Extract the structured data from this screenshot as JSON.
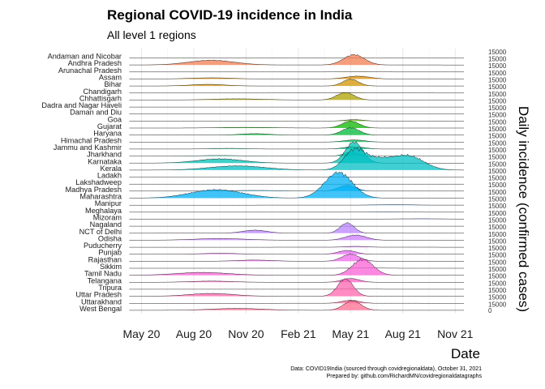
{
  "chart_data": {
    "type": "area",
    "subtype": "ridgeline",
    "title": "Regional COVID-19 incidence in India",
    "subtitle": "All level 1 regions",
    "xlabel": "Date",
    "ylabel": "Daily incidence (confirmed cases)",
    "x_range": [
      0,
      19.5
    ],
    "x_unit": "months since 2020-04-01",
    "x_ticks": [
      {
        "label": "May 20",
        "value": 1
      },
      {
        "label": "Aug 20",
        "value": 4
      },
      {
        "label": "Nov 20",
        "value": 7
      },
      {
        "label": "Feb 21",
        "value": 10
      },
      {
        "label": "May 21",
        "value": 13
      },
      {
        "label": "Aug 21",
        "value": 16
      },
      {
        "label": "Nov 21",
        "value": 19
      }
    ],
    "y_ticks_per_panel": [
      "0",
      "15000"
    ],
    "panel_max": 15000,
    "caption": [
      "Data: COVID19India (sourced through covidregionaldata), October 31, 2021",
      "Prepared by: github.com/RichardMN/covidregionaldatagraphs"
    ],
    "series": [
      {
        "name": "Andaman and Nicobar",
        "color": "#f8766d",
        "peaks": []
      },
      {
        "name": "Andhra Pradesh",
        "color": "#f27d52",
        "peaks": [
          [
            5,
            10000,
            1.3
          ],
          [
            13.2,
            22000,
            0.6
          ]
        ]
      },
      {
        "name": "Arunachal Pradesh",
        "color": "#ea8331",
        "peaks": [
          [
            13.5,
            500,
            1.0
          ]
        ]
      },
      {
        "name": "Assam",
        "color": "#de8c00",
        "peaks": [
          [
            5,
            2500,
            1.2
          ],
          [
            13.4,
            6000,
            0.7
          ]
        ]
      },
      {
        "name": "Bihar",
        "color": "#d09400",
        "peaks": [
          [
            4.8,
            3500,
            1.0
          ],
          [
            13,
            14500,
            0.45
          ]
        ]
      },
      {
        "name": "Chandigarh",
        "color": "#c09b00",
        "peaks": [
          [
            13,
            900,
            0.6
          ]
        ]
      },
      {
        "name": "Chhattisgarh",
        "color": "#aea200",
        "peaks": [
          [
            6.5,
            2500,
            1.5
          ],
          [
            12.7,
            16000,
            0.5
          ]
        ]
      },
      {
        "name": "Dadra and Nagar Haveli",
        "color": "#99a800",
        "peaks": []
      },
      {
        "name": "Daman and Diu",
        "color": "#7cae00",
        "peaks": []
      },
      {
        "name": "Goa",
        "color": "#53b400",
        "peaks": [
          [
            13.2,
            3000,
            0.5
          ]
        ]
      },
      {
        "name": "Gujarat",
        "color": "#0cb702",
        "peaks": [
          [
            7,
            1500,
            1.5
          ],
          [
            13,
            14500,
            0.5
          ]
        ]
      },
      {
        "name": "Haryana",
        "color": "#00ba38",
        "peaks": [
          [
            7.5,
            3000,
            0.8
          ],
          [
            13,
            15500,
            0.5
          ]
        ]
      },
      {
        "name": "Himachal Pradesh",
        "color": "#00bd5c",
        "peaks": [
          [
            13.2,
            4500,
            0.6
          ]
        ]
      },
      {
        "name": "Jammu and Kashmir",
        "color": "#00bf7d",
        "peaks": [
          [
            6,
            1500,
            1.0
          ],
          [
            13.2,
            5000,
            0.6
          ]
        ]
      },
      {
        "name": "Jharkhand",
        "color": "#00c19a",
        "peaks": [
          [
            5.5,
            1200,
            1.2
          ],
          [
            13,
            8000,
            0.4
          ]
        ]
      },
      {
        "name": "Karnataka",
        "color": "#00c0b5",
        "peaks": [
          [
            5.5,
            9000,
            1.3
          ],
          [
            13.2,
            45000,
            0.5
          ]
        ]
      },
      {
        "name": "Kerala",
        "color": "#00bfc4",
        "peaks": [
          [
            6.5,
            9000,
            1.6
          ],
          [
            13.2,
            40000,
            0.6
          ],
          [
            16.3,
            30000,
            0.9
          ],
          [
            14.5,
            20000,
            0.8
          ]
        ]
      },
      {
        "name": "Ladakh",
        "color": "#00bcd8",
        "peaks": []
      },
      {
        "name": "Lakshadweep",
        "color": "#00b8e5",
        "peaks": []
      },
      {
        "name": "Madhya Pradesh",
        "color": "#00b4ef",
        "peaks": [
          [
            7.5,
            1500,
            1.5
          ],
          [
            12.8,
            12000,
            0.5
          ]
        ]
      },
      {
        "name": "Maharashtra",
        "color": "#00b0f6",
        "peaks": [
          [
            5.3,
            18000,
            1.5
          ],
          [
            12.3,
            55000,
            0.8
          ]
        ]
      },
      {
        "name": "Manipur",
        "color": "#35a2ff",
        "peaks": [
          [
            15.5,
            1000,
            1.0
          ]
        ]
      },
      {
        "name": "Meghalaya",
        "color": "#619cff",
        "peaks": [
          [
            15,
            700,
            1.0
          ]
        ]
      },
      {
        "name": "Mizoram",
        "color": "#8794ff",
        "peaks": [
          [
            17,
            900,
            1.5
          ]
        ]
      },
      {
        "name": "Nagaland",
        "color": "#9e8cff",
        "peaks": []
      },
      {
        "name": "NCT of Delhi",
        "color": "#b983ff",
        "peaks": [
          [
            7.5,
            6500,
            0.7
          ],
          [
            12.8,
            22000,
            0.4
          ]
        ]
      },
      {
        "name": "Odisha",
        "color": "#cb7bff",
        "peaks": [
          [
            5.5,
            3500,
            1.5
          ],
          [
            13.3,
            11000,
            0.6
          ]
        ]
      },
      {
        "name": "Puducherry",
        "color": "#db72fb",
        "peaks": [
          [
            13.3,
            1800,
            0.6
          ]
        ]
      },
      {
        "name": "Punjab",
        "color": "#e76bf3",
        "peaks": [
          [
            5.5,
            2000,
            1.0
          ],
          [
            12.8,
            8000,
            0.5
          ]
        ]
      },
      {
        "name": "Rajasthan",
        "color": "#ef67eb",
        "peaks": [
          [
            7.5,
            2500,
            1.0
          ],
          [
            13,
            15000,
            0.5
          ]
        ]
      },
      {
        "name": "Sikkim",
        "color": "#f564e3",
        "peaks": [
          [
            14,
            400,
            1.0
          ]
        ]
      },
      {
        "name": "Tamil Nadu",
        "color": "#fa62d5",
        "peaks": [
          [
            4.5,
            6000,
            1.5
          ],
          [
            13.7,
            34000,
            0.6
          ]
        ]
      },
      {
        "name": "Telangana",
        "color": "#fd61c7",
        "peaks": [
          [
            5,
            2500,
            1.2
          ],
          [
            13,
            8000,
            0.5
          ]
        ]
      },
      {
        "name": "Tripura",
        "color": "#ff62bc",
        "peaks": [
          [
            13.5,
            400,
            1.0
          ]
        ]
      },
      {
        "name": "Uttar Pradesh",
        "color": "#ff65ae",
        "peaks": [
          [
            5,
            6000,
            1.3
          ],
          [
            12.7,
            37000,
            0.45
          ]
        ]
      },
      {
        "name": "Uttarakhand",
        "color": "#ff689e",
        "peaks": [
          [
            13,
            6500,
            0.5
          ]
        ]
      },
      {
        "name": "West Bengal",
        "color": "#ff6c91",
        "peaks": [
          [
            6.5,
            4000,
            1.5
          ],
          [
            13.1,
            20000,
            0.5
          ]
        ]
      }
    ]
  }
}
